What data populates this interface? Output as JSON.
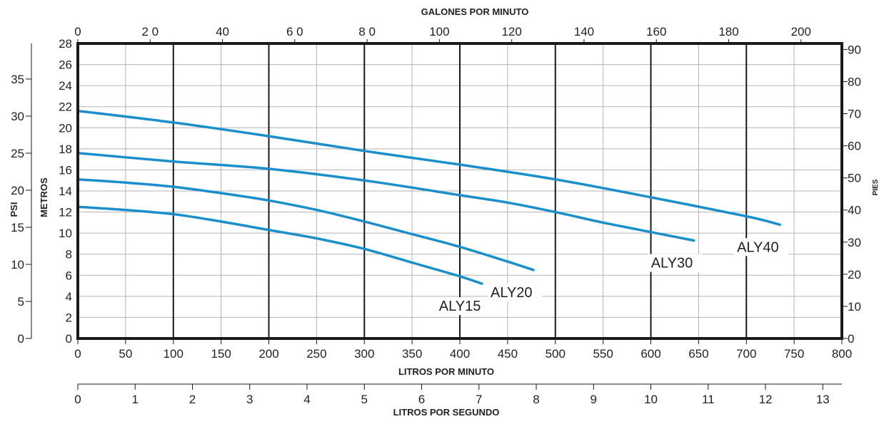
{
  "chart_data": {
    "type": "line",
    "title": "",
    "x_axes": {
      "litros_por_minuto": {
        "label": "LITROS POR MINUTO",
        "range": [
          0,
          800
        ],
        "ticks": [
          0,
          50,
          100,
          150,
          200,
          250,
          300,
          350,
          400,
          450,
          500,
          550,
          600,
          650,
          700,
          750,
          800
        ],
        "major_gridlines": [
          100,
          200,
          300,
          400,
          500,
          600,
          700
        ]
      },
      "galones_por_minuto": {
        "label": "GALONES POR MINUTO",
        "range": [
          0,
          211.3
        ],
        "ticks": [
          "0",
          "2 0",
          "40",
          "6 0",
          "8 0",
          "100",
          "120",
          "140",
          "160",
          "180",
          "200"
        ]
      },
      "litros_por_segundo": {
        "label": "LITROS POR SEGUNDO",
        "range": [
          0,
          13.333
        ],
        "ticks": [
          0,
          1,
          2,
          3,
          4,
          5,
          6,
          7,
          8,
          9,
          10,
          11,
          12,
          13
        ]
      }
    },
    "y_axes": {
      "metros": {
        "label": "METROS",
        "range": [
          0,
          28
        ],
        "ticks": [
          0,
          2,
          4,
          6,
          8,
          10,
          12,
          14,
          16,
          18,
          20,
          22,
          24,
          26,
          28
        ]
      },
      "psi": {
        "label": "PSI",
        "range": [
          0,
          39.8
        ],
        "ticks": [
          0,
          5,
          10,
          15,
          20,
          25,
          30,
          35
        ]
      },
      "pies": {
        "label": "PIES",
        "range": [
          0,
          91.86
        ],
        "ticks": [
          0,
          10,
          20,
          30,
          40,
          50,
          60,
          70,
          80,
          90
        ]
      }
    },
    "grid": true,
    "legend": "labels placed at ends of curves",
    "series_color": "#1b8fcc",
    "series": [
      {
        "name": "ALY15",
        "x_lpm": [
          0,
          50,
          100,
          150,
          200,
          250,
          300,
          350,
          400,
          423
        ],
        "y_m": [
          12.5,
          12.2,
          11.8,
          11.1,
          10.3,
          9.5,
          8.5,
          7.2,
          5.9,
          5.2
        ]
      },
      {
        "name": "ALY20",
        "x_lpm": [
          0,
          50,
          100,
          150,
          200,
          250,
          300,
          350,
          400,
          450,
          477
        ],
        "y_m": [
          15.1,
          14.8,
          14.4,
          13.8,
          13.1,
          12.2,
          11.1,
          9.9,
          8.7,
          7.3,
          6.5
        ]
      },
      {
        "name": "ALY30",
        "x_lpm": [
          0,
          100,
          200,
          300,
          400,
          450,
          500,
          550,
          600,
          645
        ],
        "y_m": [
          17.6,
          16.8,
          16.1,
          15.0,
          13.6,
          12.9,
          12.0,
          11.0,
          10.1,
          9.3
        ]
      },
      {
        "name": "ALY40",
        "x_lpm": [
          0,
          100,
          200,
          300,
          400,
          500,
          600,
          700,
          735
        ],
        "y_m": [
          21.6,
          20.5,
          19.2,
          17.8,
          16.5,
          15.1,
          13.4,
          11.6,
          10.8
        ]
      }
    ]
  }
}
